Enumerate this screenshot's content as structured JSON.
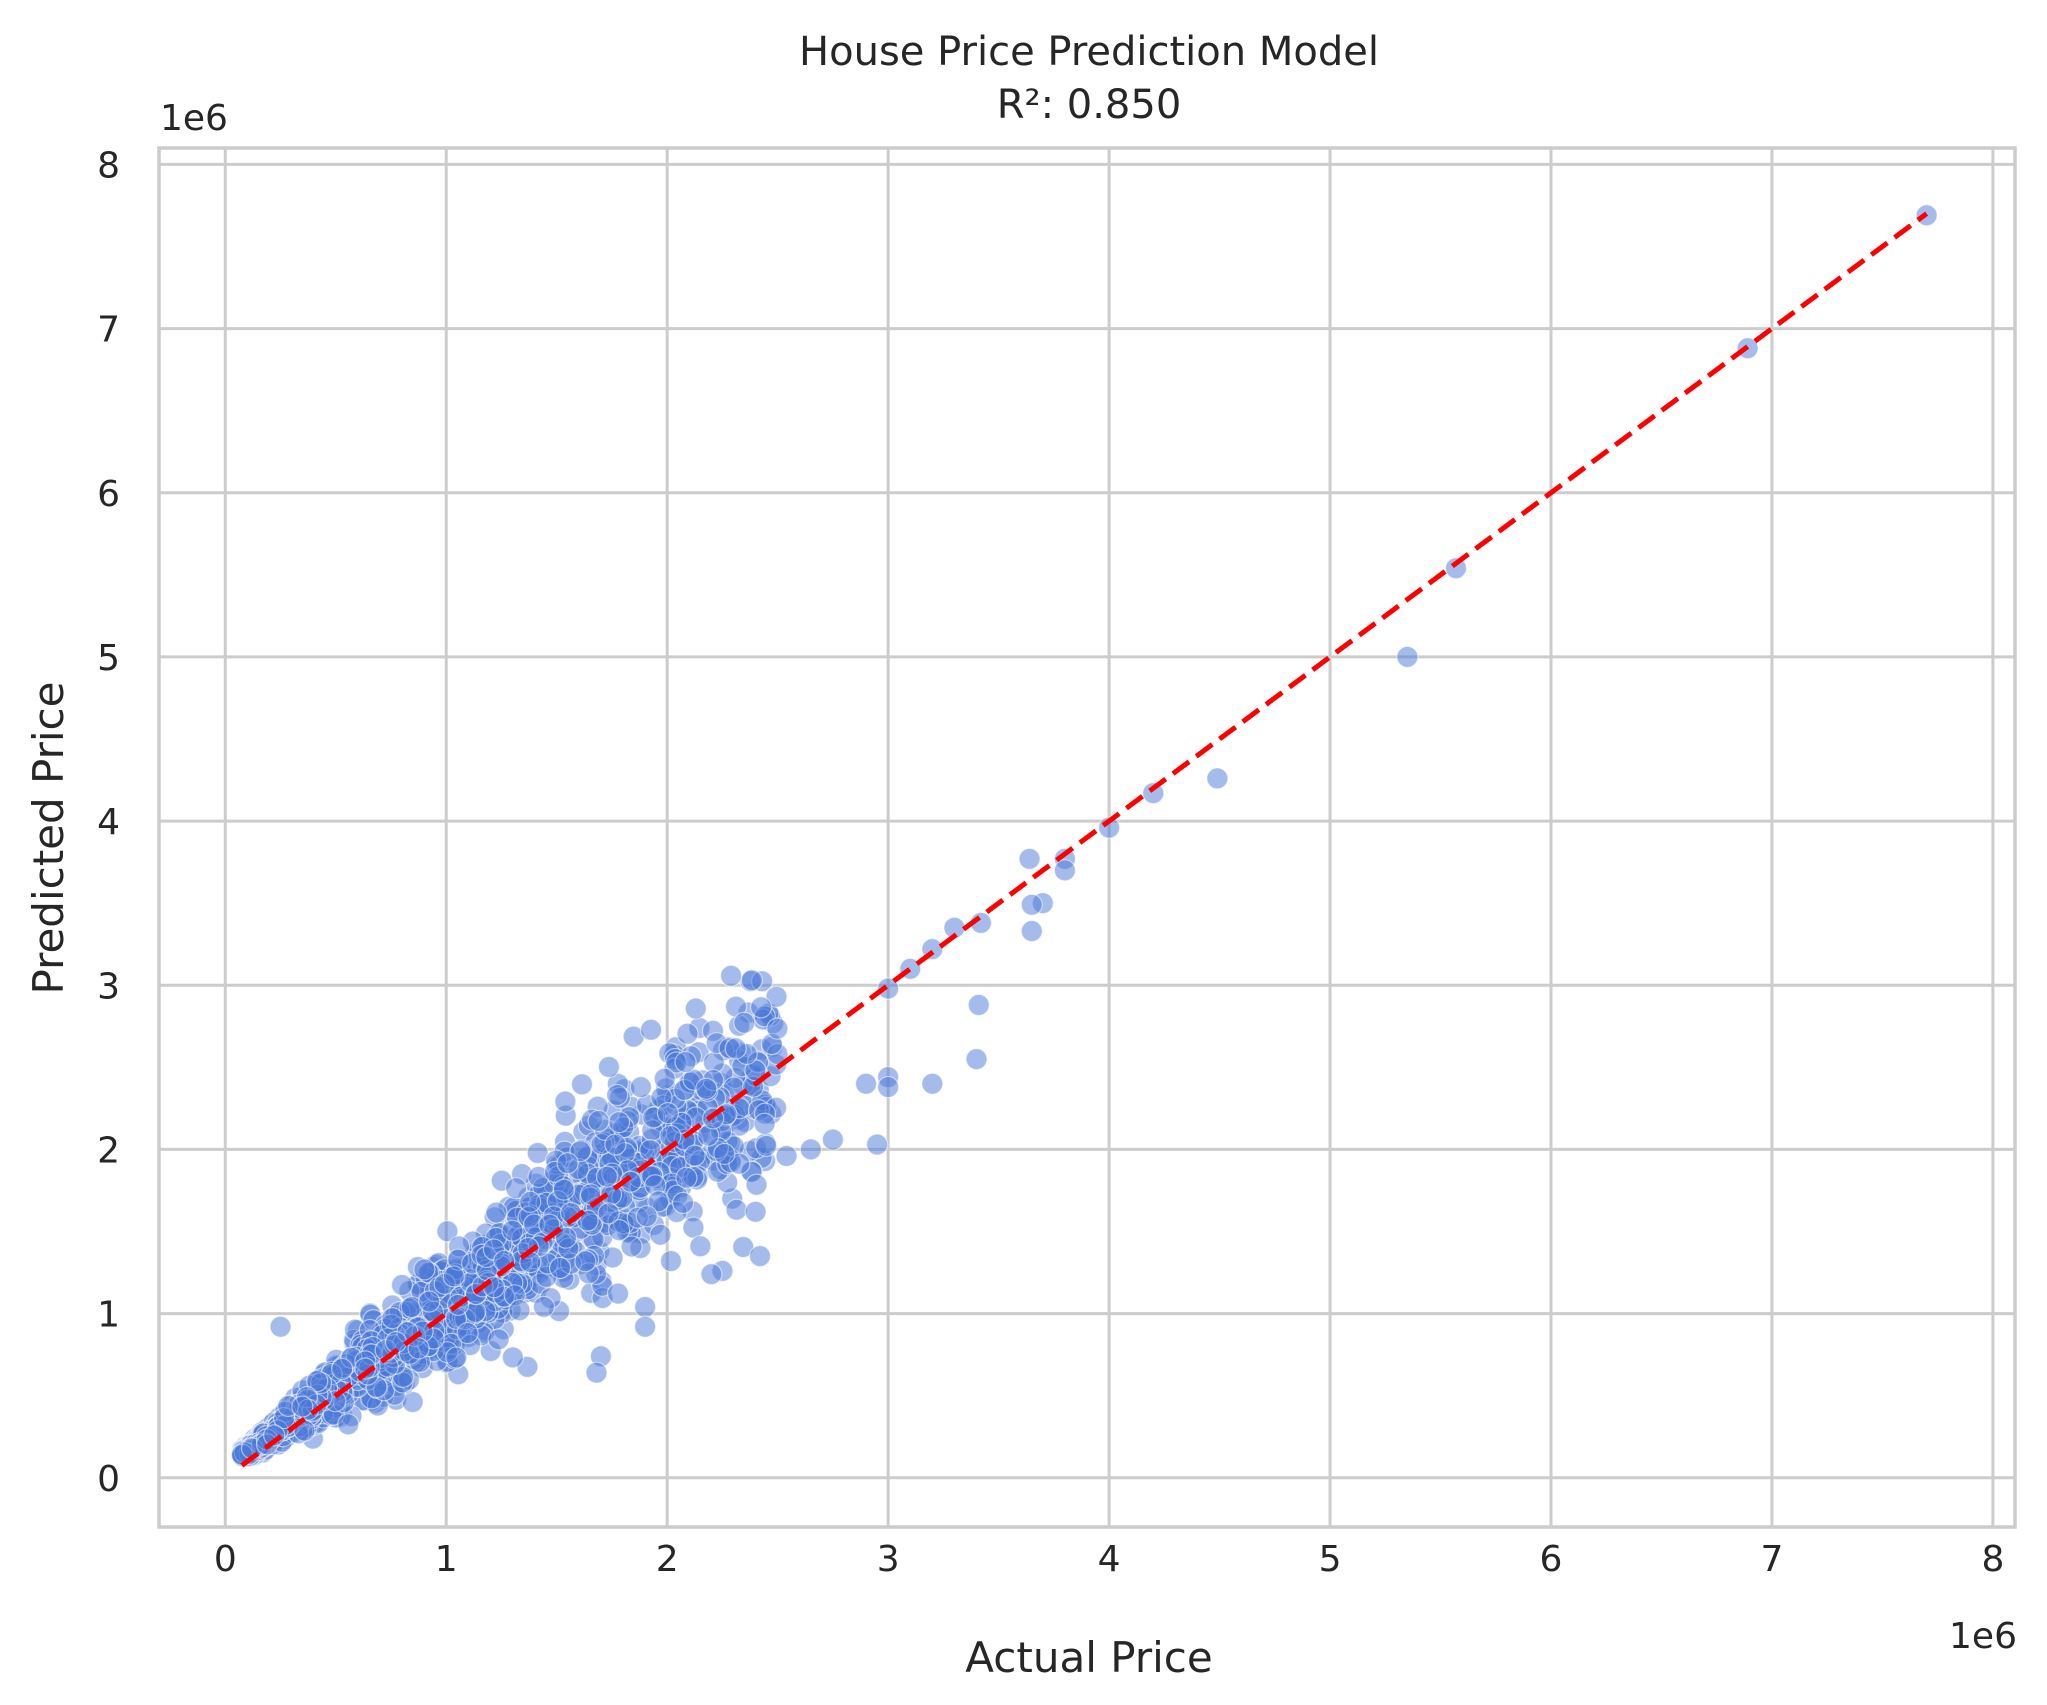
{
  "chart_data": {
    "type": "scatter",
    "title": "House Price Prediction Model",
    "subtitle": "R²: 0.850",
    "xlabel": "Actual Price",
    "ylabel": "Predicted Price",
    "x_offset_label": "1e6",
    "y_offset_label": "1e6",
    "xlim": [
      -300000,
      8100000
    ],
    "ylim": [
      -300000,
      8100000
    ],
    "x_ticks": [
      0,
      1000000,
      2000000,
      3000000,
      4000000,
      5000000,
      6000000,
      7000000,
      8000000
    ],
    "x_tick_labels": [
      "0",
      "1",
      "2",
      "3",
      "4",
      "5",
      "6",
      "7",
      "8"
    ],
    "y_ticks": [
      0,
      1000000,
      2000000,
      3000000,
      4000000,
      5000000,
      6000000,
      7000000,
      8000000
    ],
    "y_tick_labels": [
      "0",
      "1",
      "2",
      "3",
      "4",
      "5",
      "6",
      "7",
      "8"
    ],
    "grid": true,
    "point_color": "#4a78d8",
    "reference_line": {
      "style": "dashed",
      "color": "#ff0000",
      "from": [
        75000,
        75000
      ],
      "to": [
        7700000,
        7700000
      ]
    },
    "notable_points": [
      [
        7700000,
        7690000
      ],
      [
        6890000,
        6880000
      ],
      [
        5570000,
        5540000
      ],
      [
        5350000,
        5000000
      ],
      [
        4490000,
        4260000
      ],
      [
        4200000,
        4170000
      ],
      [
        4000000,
        3960000
      ],
      [
        3800000,
        3770000
      ],
      [
        3800000,
        3700000
      ],
      [
        3700000,
        3500000
      ],
      [
        3640000,
        3770000
      ],
      [
        3650000,
        3490000
      ],
      [
        3650000,
        3330000
      ],
      [
        3420000,
        3380000
      ],
      [
        3410000,
        2880000
      ],
      [
        3400000,
        2550000
      ],
      [
        3300000,
        3350000
      ],
      [
        3200000,
        3220000
      ],
      [
        3200000,
        2400000
      ],
      [
        3100000,
        3100000
      ],
      [
        3000000,
        2980000
      ],
      [
        3000000,
        2440000
      ],
      [
        3000000,
        2380000
      ],
      [
        2950000,
        2030000
      ],
      [
        2900000,
        2400000
      ],
      [
        2750000,
        2060000
      ],
      [
        2650000,
        2000000
      ],
      [
        2540000,
        1960000
      ],
      [
        2420000,
        1350000
      ],
      [
        2400000,
        1620000
      ],
      [
        2250000,
        1260000
      ],
      [
        2200000,
        1240000
      ],
      [
        2150000,
        1410000
      ],
      [
        1900000,
        1040000
      ],
      [
        1900000,
        920000
      ],
      [
        1700000,
        740000
      ],
      [
        1680000,
        640000
      ],
      [
        250000,
        920000
      ]
    ],
    "cloud_model": {
      "count": 1900,
      "x_min": 75000,
      "x_max": 2500000,
      "ratio_mean": 0.97,
      "ratio_sd": 0.16,
      "floor": 130000,
      "seed": 7
    }
  }
}
